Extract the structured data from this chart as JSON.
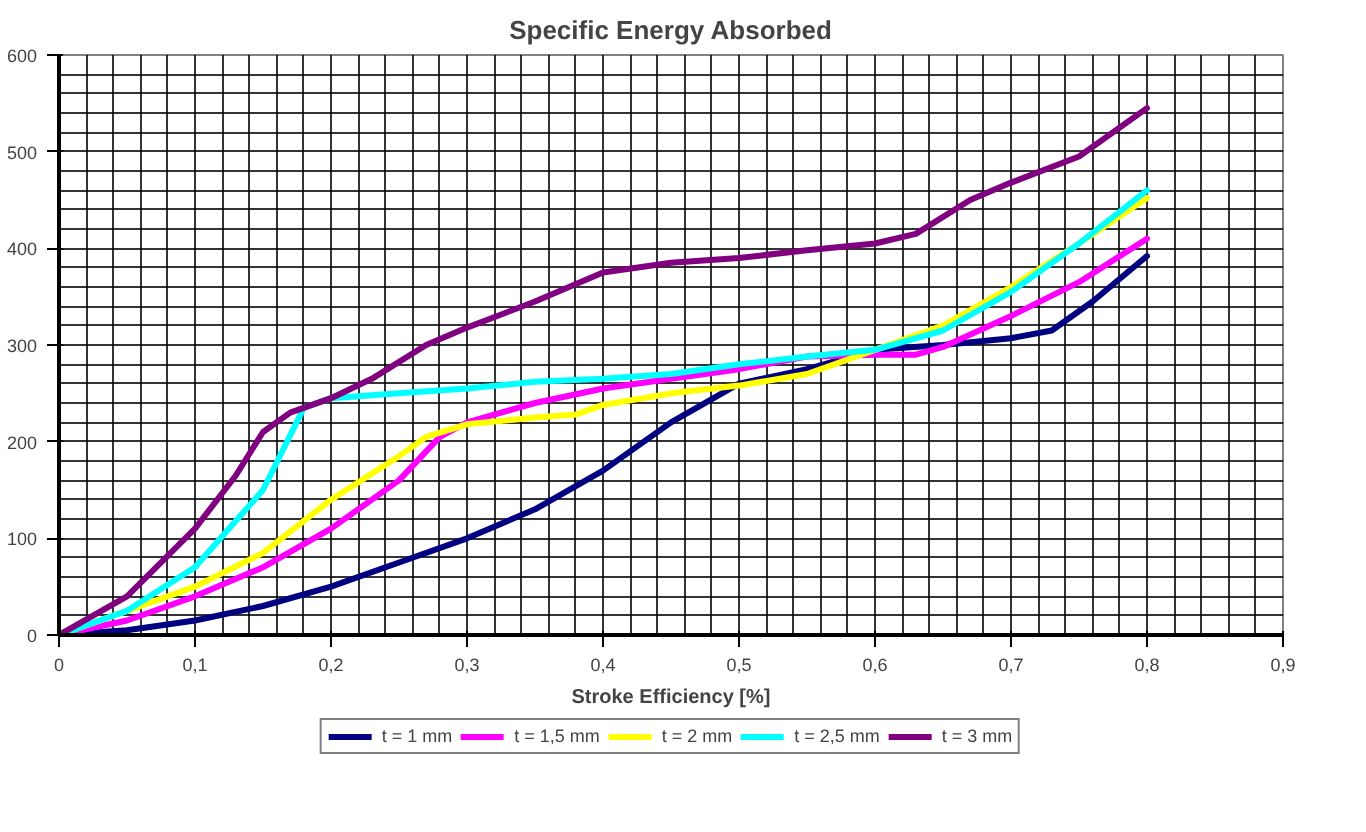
{
  "chart_data": {
    "type": "line",
    "title": "Specific Energy Absorbed",
    "xlabel": "Stroke Efficiency [%]",
    "xlim": [
      0,
      0.9
    ],
    "xticks": [
      0,
      {
        "value": 0.1,
        "label": "0,1"
      },
      {
        "value": 0.2,
        "label": "0,2"
      },
      {
        "value": 0.3,
        "label": "0,3"
      },
      {
        "value": 0.4,
        "label": "0,4"
      },
      {
        "value": 0.5,
        "label": "0,5"
      },
      {
        "value": 0.6,
        "label": "0,6"
      },
      {
        "value": 0.7,
        "label": "0,7"
      },
      {
        "value": 0.8,
        "label": "0,8"
      },
      {
        "value": 0.9,
        "label": "0,9"
      }
    ],
    "ylim": [
      0,
      600
    ],
    "yticks": [
      0,
      100,
      200,
      300,
      400,
      500,
      600
    ],
    "grid": true,
    "legend": "bottom",
    "marker": "none",
    "line_style": "solid",
    "series": [
      {
        "name": "t = 1 mm",
        "color": "#000080",
        "x": [
          0,
          0.05,
          0.1,
          0.15,
          0.2,
          0.25,
          0.3,
          0.35,
          0.4,
          0.45,
          0.5,
          0.55,
          0.6,
          0.65,
          0.7,
          0.73,
          0.76,
          0.8
        ],
        "values": [
          0,
          5,
          15,
          30,
          50,
          75,
          100,
          130,
          170,
          220,
          260,
          275,
          295,
          300,
          307,
          315,
          345,
          392
        ]
      },
      {
        "name": "t = 1,5 mm",
        "color": "#ff00ff",
        "x": [
          0,
          0.05,
          0.1,
          0.15,
          0.2,
          0.25,
          0.28,
          0.3,
          0.35,
          0.4,
          0.45,
          0.5,
          0.55,
          0.6,
          0.63,
          0.65,
          0.7,
          0.75,
          0.8
        ],
        "values": [
          0,
          15,
          40,
          70,
          110,
          160,
          205,
          220,
          240,
          255,
          265,
          275,
          288,
          290,
          290,
          298,
          330,
          365,
          410
        ]
      },
      {
        "name": "t = 2 mm",
        "color": "#ffff00",
        "x": [
          0,
          0.05,
          0.1,
          0.15,
          0.2,
          0.25,
          0.27,
          0.3,
          0.35,
          0.38,
          0.4,
          0.45,
          0.5,
          0.55,
          0.6,
          0.65,
          0.7,
          0.75,
          0.8
        ],
        "values": [
          0,
          25,
          50,
          85,
          140,
          185,
          205,
          218,
          225,
          228,
          238,
          250,
          258,
          270,
          295,
          320,
          360,
          405,
          452
        ]
      },
      {
        "name": "t = 2,5 mm",
        "color": "#00ffff",
        "x": [
          0,
          0.05,
          0.1,
          0.15,
          0.18,
          0.2,
          0.25,
          0.3,
          0.35,
          0.4,
          0.45,
          0.5,
          0.55,
          0.6,
          0.65,
          0.7,
          0.75,
          0.8
        ],
        "values": [
          0,
          25,
          70,
          150,
          235,
          245,
          250,
          255,
          262,
          265,
          270,
          280,
          288,
          295,
          315,
          355,
          405,
          460
        ]
      },
      {
        "name": "t = 3 mm",
        "color": "#800080",
        "x": [
          0,
          0.05,
          0.1,
          0.13,
          0.15,
          0.17,
          0.2,
          0.23,
          0.27,
          0.3,
          0.35,
          0.4,
          0.45,
          0.5,
          0.55,
          0.6,
          0.63,
          0.67,
          0.7,
          0.75,
          0.8
        ],
        "values": [
          0,
          40,
          110,
          165,
          210,
          230,
          245,
          265,
          300,
          318,
          345,
          375,
          385,
          390,
          398,
          405,
          415,
          450,
          468,
          495,
          545
        ]
      }
    ]
  }
}
